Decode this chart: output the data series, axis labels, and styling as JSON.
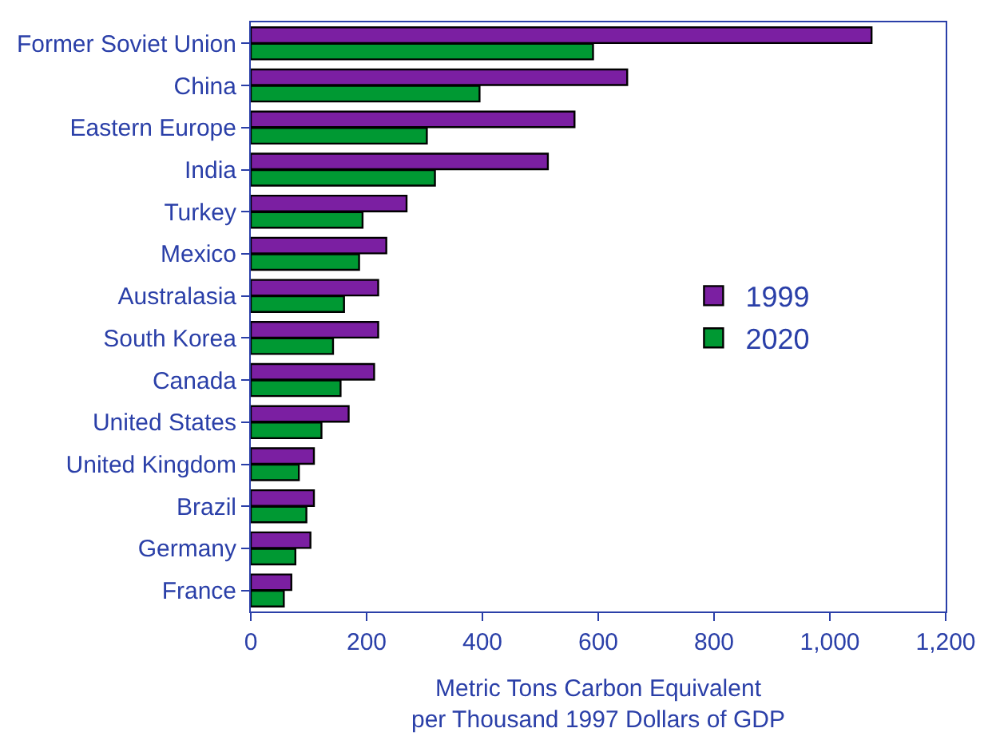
{
  "chart_data": {
    "type": "bar",
    "orientation": "horizontal",
    "categories": [
      "Former Soviet Union",
      "China",
      "Eastern Europe",
      "India",
      "Turkey",
      "Mexico",
      "Australasia",
      "South Korea",
      "Canada",
      "United States",
      "United Kingdom",
      "Brazil",
      "Germany",
      "France"
    ],
    "series": [
      {
        "name": "1999",
        "color": "#7b1fa2",
        "values": [
          1072,
          650,
          559,
          513,
          269,
          234,
          220,
          220,
          213,
          169,
          109,
          109,
          103,
          70
        ]
      },
      {
        "name": "2020",
        "color": "#009933",
        "values": [
          591,
          395,
          304,
          318,
          193,
          187,
          161,
          142,
          155,
          122,
          83,
          96,
          77,
          57
        ]
      }
    ],
    "xlabel": "Metric Tons Carbon Equivalent\nper Thousand 1997 Dollars of GDP",
    "xlim": [
      0,
      1200
    ],
    "xticks": [
      0,
      200,
      400,
      600,
      800,
      {
        "value": 1000,
        "label": "1,000"
      },
      {
        "value": 1200,
        "label": "1,200"
      }
    ],
    "legend": "right"
  }
}
